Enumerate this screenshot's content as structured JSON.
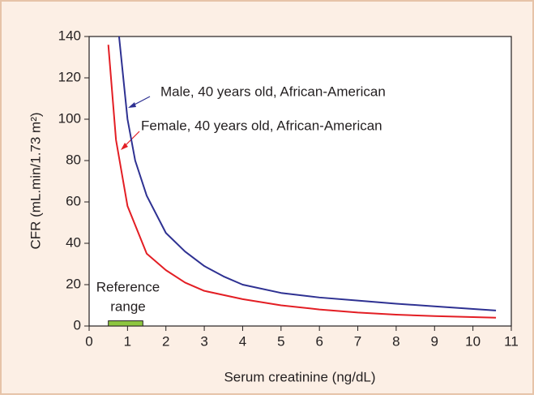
{
  "chart_data": {
    "type": "line",
    "xlabel": "Serum creatinine (ng/dL)",
    "ylabel": "CFR (mL.min/1.73 m²)",
    "xlim": [
      0,
      11
    ],
    "xticks": [
      0,
      1,
      2,
      3,
      4,
      5,
      6,
      7,
      8,
      9,
      10,
      11
    ],
    "ylim": [
      0,
      140
    ],
    "yticks": [
      0,
      20,
      40,
      60,
      80,
      100,
      120,
      140
    ],
    "series": [
      {
        "name": "Male, 40 years old, African-American",
        "color": "#2e3192",
        "x": [
          0.78,
          1,
          1.2,
          1.5,
          2,
          2.5,
          3,
          3.5,
          4,
          5,
          6,
          7,
          8,
          9,
          10.6
        ],
        "values": [
          140,
          100,
          80,
          63,
          45,
          36,
          29,
          24,
          20,
          16,
          13.8,
          12.3,
          10.8,
          9.5,
          7.5
        ]
      },
      {
        "name": "Female, 40 years old, African-American",
        "color": "#e31e24",
        "x": [
          0.5,
          0.7,
          1,
          1.5,
          2,
          2.5,
          3,
          4,
          5,
          6,
          7,
          8,
          9,
          10.6
        ],
        "values": [
          136,
          90,
          58,
          35,
          27,
          21,
          17,
          13,
          10,
          8,
          6.5,
          5.5,
          4.8,
          4
        ]
      }
    ],
    "reference_range": {
      "label_lines": [
        "Reference",
        "range"
      ],
      "color": "#8dc63f",
      "x": [
        0.5,
        1.4
      ],
      "y": [
        0,
        2.5
      ]
    }
  }
}
